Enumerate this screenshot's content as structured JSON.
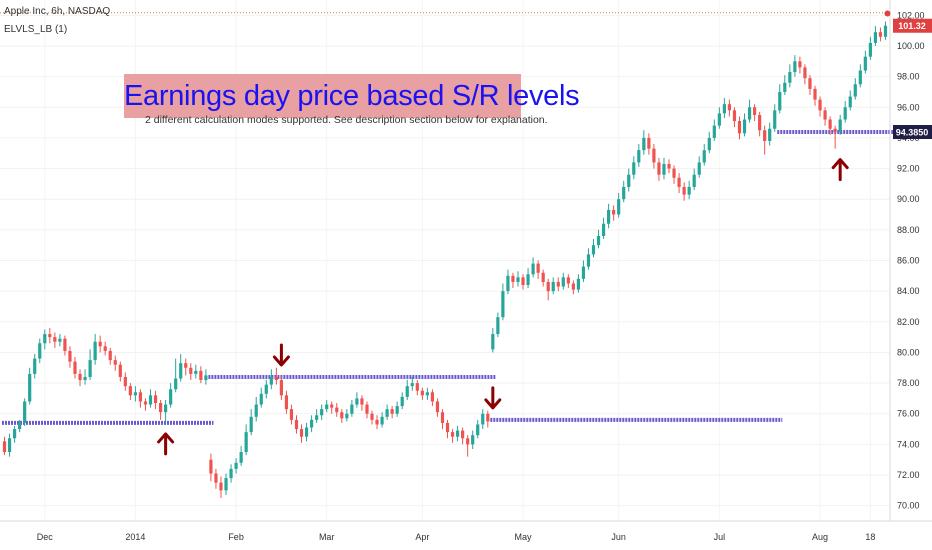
{
  "header": {
    "symbol_line": "Apple Inc, 6h, NASDAQ",
    "indicator_line": "ELVLS_LB (1)"
  },
  "banner": {
    "title": "Earnings day price based S/R levels",
    "subtitle": "2 different calculation modes supported. See description section below for explanation."
  },
  "colors": {
    "up": "#26a69a",
    "down": "#ef5350",
    "level": "#6a5acd",
    "arrow": "#8b0000",
    "current_price": "#e04040",
    "banner_bg": "#e8a0a3",
    "banner_text": "#1b12f0"
  },
  "chart_data": {
    "type": "candlestick",
    "y_axis": {
      "min": 69,
      "max": 103,
      "ticks": [
        "70.00",
        "72.00",
        "74.00",
        "76.00",
        "78.00",
        "80.00",
        "82.00",
        "84.00",
        "86.00",
        "88.00",
        "90.00",
        "92.00",
        "94.00",
        "96.00",
        "98.00",
        "100.00",
        "102.00"
      ]
    },
    "x_axis": {
      "labels": [
        "Dec",
        "2014",
        "Feb",
        "Mar",
        "Apr",
        "May",
        "Jun",
        "Jul",
        "Aug",
        "18"
      ],
      "label_positions": [
        8,
        26,
        46,
        64,
        83,
        103,
        122,
        142,
        162,
        172
      ]
    },
    "current_price": {
      "value": 101.32,
      "label": "101.32"
    },
    "level_price_label": {
      "value": 94.385,
      "label": "94.3850"
    },
    "sr_levels": [
      {
        "value": 75.4,
        "from": 0,
        "to": 41
      },
      {
        "value": 78.4,
        "from": 41,
        "to": 97
      },
      {
        "value": 75.6,
        "from": 97,
        "to": 154
      },
      {
        "value": 94.385,
        "from": 154,
        "to": 176
      }
    ],
    "earnings_arrows": [
      {
        "index": 32,
        "direction": "up",
        "value": 75.4
      },
      {
        "index": 55,
        "direction": "down",
        "value": 78.4
      },
      {
        "index": 97,
        "direction": "down",
        "value": 75.6
      },
      {
        "index": 166,
        "direction": "up",
        "value": 93.3
      }
    ],
    "candles": [
      [
        74.2,
        73.5,
        74.5,
        73.3
      ],
      [
        73.5,
        74.4,
        74.7,
        73.2
      ],
      [
        74.4,
        75.0,
        75.2,
        74.1
      ],
      [
        75.0,
        75.4,
        75.6,
        74.8
      ],
      [
        75.4,
        76.8,
        77.0,
        75.2
      ],
      [
        76.8,
        78.6,
        79.0,
        76.6
      ],
      [
        78.6,
        79.6,
        79.9,
        78.3
      ],
      [
        79.6,
        80.6,
        80.9,
        79.3
      ],
      [
        80.6,
        81.2,
        81.5,
        80.2
      ],
      [
        81.2,
        81.0,
        81.6,
        80.6
      ],
      [
        81.0,
        80.7,
        81.3,
        80.3
      ],
      [
        80.7,
        80.9,
        81.2,
        80.4
      ],
      [
        80.9,
        80.1,
        81.1,
        79.8
      ],
      [
        80.1,
        79.4,
        80.4,
        79.0
      ],
      [
        79.4,
        78.6,
        79.7,
        78.3
      ],
      [
        78.6,
        78.2,
        78.9,
        77.8
      ],
      [
        78.2,
        78.4,
        78.9,
        77.9
      ],
      [
        78.4,
        79.5,
        80.2,
        78.2
      ],
      [
        79.5,
        80.7,
        81.2,
        79.2
      ],
      [
        80.7,
        80.4,
        81.1,
        80.0
      ],
      [
        80.4,
        80.1,
        80.7,
        79.8
      ],
      [
        80.1,
        79.5,
        80.3,
        79.2
      ],
      [
        79.5,
        79.2,
        79.8,
        78.8
      ],
      [
        79.2,
        78.4,
        79.4,
        78.1
      ],
      [
        78.4,
        77.8,
        78.7,
        77.5
      ],
      [
        77.8,
        77.2,
        78.0,
        76.9
      ],
      [
        77.2,
        77.4,
        77.8,
        76.8
      ],
      [
        77.4,
        76.8,
        77.6,
        76.4
      ],
      [
        76.8,
        76.6,
        77.0,
        76.2
      ],
      [
        76.6,
        77.2,
        77.6,
        76.4
      ],
      [
        77.2,
        76.7,
        77.5,
        76.3
      ],
      [
        76.7,
        76.1,
        76.9,
        75.6
      ],
      [
        76.1,
        76.6,
        76.9,
        75.4
      ],
      [
        76.6,
        77.6,
        78.0,
        76.4
      ],
      [
        77.6,
        78.3,
        79.6,
        77.4
      ],
      [
        78.3,
        79.3,
        79.9,
        78.1
      ],
      [
        79.3,
        79.0,
        79.6,
        78.5
      ],
      [
        79.0,
        78.6,
        79.3,
        78.2
      ],
      [
        78.6,
        78.8,
        79.2,
        78.3
      ],
      [
        78.8,
        78.2,
        79.1,
        78.0
      ],
      [
        78.2,
        78.5,
        78.9,
        77.9
      ],
      [
        73.0,
        72.1,
        73.4,
        71.6
      ],
      [
        72.1,
        71.5,
        72.4,
        71.1
      ],
      [
        71.5,
        71.0,
        71.9,
        70.5
      ],
      [
        71.0,
        71.8,
        72.1,
        70.7
      ],
      [
        71.8,
        72.4,
        72.7,
        71.5
      ],
      [
        72.4,
        72.8,
        73.1,
        72.1
      ],
      [
        72.8,
        73.5,
        73.9,
        72.6
      ],
      [
        73.5,
        74.8,
        75.3,
        73.3
      ],
      [
        74.8,
        75.8,
        76.3,
        74.6
      ],
      [
        75.8,
        76.6,
        77.1,
        75.5
      ],
      [
        76.6,
        77.3,
        77.7,
        76.4
      ],
      [
        77.3,
        77.9,
        78.2,
        77.0
      ],
      [
        77.9,
        78.4,
        78.9,
        77.6
      ],
      [
        78.4,
        78.2,
        79.0,
        77.9
      ],
      [
        78.2,
        77.2,
        78.5,
        76.9
      ],
      [
        77.2,
        76.3,
        77.5,
        76.0
      ],
      [
        76.3,
        75.6,
        76.6,
        75.3
      ],
      [
        75.6,
        75.0,
        75.9,
        74.7
      ],
      [
        75.0,
        74.5,
        75.3,
        74.1
      ],
      [
        74.5,
        75.1,
        75.4,
        74.2
      ],
      [
        75.1,
        75.6,
        75.9,
        74.8
      ],
      [
        75.6,
        75.9,
        76.3,
        75.4
      ],
      [
        75.9,
        76.3,
        76.6,
        75.6
      ],
      [
        76.3,
        76.6,
        76.9,
        76.1
      ],
      [
        76.6,
        76.4,
        76.8,
        76.0
      ],
      [
        76.4,
        76.1,
        76.7,
        75.8
      ],
      [
        76.1,
        75.7,
        76.3,
        75.4
      ],
      [
        75.7,
        76.0,
        76.3,
        75.5
      ],
      [
        76.0,
        76.6,
        76.9,
        75.8
      ],
      [
        76.6,
        77.0,
        77.4,
        76.4
      ],
      [
        77.0,
        76.6,
        77.2,
        76.2
      ],
      [
        76.6,
        76.0,
        76.8,
        75.7
      ],
      [
        76.0,
        75.6,
        76.2,
        75.3
      ],
      [
        75.6,
        75.3,
        75.9,
        75.0
      ],
      [
        75.3,
        75.8,
        76.1,
        75.1
      ],
      [
        75.8,
        76.3,
        76.6,
        75.6
      ],
      [
        76.3,
        76.0,
        76.5,
        75.7
      ],
      [
        76.0,
        76.5,
        76.8,
        75.8
      ],
      [
        76.5,
        77.1,
        77.4,
        76.3
      ],
      [
        77.1,
        77.8,
        78.2,
        76.9
      ],
      [
        77.8,
        78.0,
        78.4,
        77.5
      ],
      [
        78.0,
        77.5,
        78.2,
        77.2
      ],
      [
        77.5,
        77.2,
        77.7,
        76.9
      ],
      [
        77.2,
        77.4,
        77.7,
        76.9
      ],
      [
        77.4,
        76.8,
        77.6,
        76.5
      ],
      [
        76.8,
        76.1,
        77.0,
        75.8
      ],
      [
        76.1,
        75.4,
        76.3,
        75.0
      ],
      [
        75.4,
        74.8,
        75.6,
        74.4
      ],
      [
        74.8,
        74.5,
        75.0,
        74.1
      ],
      [
        74.5,
        74.9,
        75.2,
        74.2
      ],
      [
        74.9,
        74.4,
        75.1,
        74.0
      ],
      [
        74.4,
        74.0,
        74.6,
        73.2
      ],
      [
        74.0,
        74.6,
        74.9,
        73.7
      ],
      [
        74.6,
        75.3,
        75.6,
        74.4
      ],
      [
        75.3,
        76.0,
        76.3,
        75.0
      ],
      [
        76.0,
        75.5,
        76.2,
        75.1
      ],
      [
        80.2,
        81.2,
        81.6,
        80.0
      ],
      [
        81.2,
        82.3,
        82.6,
        81.0
      ],
      [
        82.3,
        84.0,
        84.5,
        82.1
      ],
      [
        84.0,
        85.0,
        85.4,
        83.8
      ],
      [
        85.0,
        84.6,
        85.2,
        84.2
      ],
      [
        84.6,
        84.9,
        85.3,
        84.3
      ],
      [
        84.9,
        84.4,
        85.1,
        84.1
      ],
      [
        84.4,
        85.1,
        85.5,
        84.2
      ],
      [
        85.1,
        85.8,
        86.2,
        84.9
      ],
      [
        85.8,
        85.2,
        86.0,
        84.8
      ],
      [
        85.2,
        84.6,
        85.4,
        84.3
      ],
      [
        84.6,
        84.0,
        84.8,
        83.4
      ],
      [
        84.0,
        84.6,
        84.9,
        83.8
      ],
      [
        84.6,
        84.3,
        84.9,
        84.0
      ],
      [
        84.3,
        84.9,
        85.2,
        84.1
      ],
      [
        84.9,
        84.5,
        85.1,
        84.2
      ],
      [
        84.5,
        84.1,
        84.7,
        83.8
      ],
      [
        84.1,
        84.8,
        85.1,
        83.9
      ],
      [
        84.8,
        85.6,
        86.0,
        84.6
      ],
      [
        85.6,
        86.4,
        86.8,
        85.4
      ],
      [
        86.4,
        87.0,
        87.4,
        86.2
      ],
      [
        87.0,
        87.6,
        88.0,
        86.8
      ],
      [
        87.6,
        88.4,
        88.8,
        87.4
      ],
      [
        88.4,
        89.3,
        89.7,
        88.1
      ],
      [
        89.3,
        89.0,
        89.6,
        88.6
      ],
      [
        89.0,
        90.0,
        90.4,
        88.8
      ],
      [
        90.0,
        90.8,
        91.2,
        89.8
      ],
      [
        90.8,
        91.6,
        92.0,
        90.5
      ],
      [
        91.6,
        92.4,
        92.8,
        91.3
      ],
      [
        92.4,
        93.2,
        93.6,
        92.1
      ],
      [
        93.2,
        94.0,
        94.5,
        92.9
      ],
      [
        94.0,
        93.3,
        94.3,
        92.9
      ],
      [
        93.3,
        92.4,
        93.6,
        92.0
      ],
      [
        92.4,
        91.6,
        92.7,
        91.2
      ],
      [
        91.6,
        92.3,
        92.7,
        91.3
      ],
      [
        92.3,
        92.0,
        92.6,
        91.7
      ],
      [
        92.0,
        91.4,
        92.2,
        91.0
      ],
      [
        91.4,
        90.8,
        91.7,
        90.4
      ],
      [
        90.8,
        90.3,
        91.1,
        89.9
      ],
      [
        90.3,
        90.8,
        91.2,
        90.0
      ],
      [
        90.8,
        91.6,
        92.0,
        90.6
      ],
      [
        91.6,
        92.4,
        92.8,
        91.4
      ],
      [
        92.4,
        93.2,
        93.6,
        92.2
      ],
      [
        93.2,
        94.0,
        94.4,
        93.0
      ],
      [
        94.0,
        94.8,
        95.2,
        93.8
      ],
      [
        94.8,
        95.6,
        96.0,
        94.6
      ],
      [
        95.6,
        96.2,
        96.6,
        95.3
      ],
      [
        96.2,
        95.8,
        96.5,
        95.4
      ],
      [
        95.8,
        95.1,
        96.0,
        94.7
      ],
      [
        95.1,
        94.3,
        95.4,
        93.9
      ],
      [
        94.3,
        95.2,
        95.6,
        94.1
      ],
      [
        95.2,
        96.0,
        96.5,
        95.0
      ],
      [
        96.0,
        95.5,
        96.2,
        95.1
      ],
      [
        95.5,
        94.5,
        95.7,
        94.1
      ],
      [
        94.5,
        93.8,
        94.8,
        92.9
      ],
      [
        93.8,
        94.6,
        95.0,
        93.5
      ],
      [
        94.6,
        95.8,
        96.2,
        94.4
      ],
      [
        95.8,
        97.0,
        97.5,
        95.6
      ],
      [
        97.0,
        97.6,
        98.1,
        96.8
      ],
      [
        97.6,
        98.3,
        98.8,
        97.3
      ],
      [
        98.3,
        99.0,
        99.4,
        98.0
      ],
      [
        99.0,
        98.6,
        99.3,
        98.2
      ],
      [
        98.6,
        97.9,
        98.8,
        97.5
      ],
      [
        97.9,
        97.2,
        98.1,
        96.8
      ],
      [
        97.2,
        96.5,
        97.4,
        96.1
      ],
      [
        96.5,
        95.8,
        96.7,
        95.4
      ],
      [
        95.8,
        95.2,
        96.0,
        94.8
      ],
      [
        95.2,
        94.6,
        95.4,
        94.2
      ],
      [
        94.6,
        94.4,
        94.8,
        93.3
      ],
      [
        94.4,
        95.2,
        95.5,
        94.2
      ],
      [
        95.2,
        96.0,
        96.4,
        95.0
      ],
      [
        96.0,
        96.7,
        97.1,
        95.8
      ],
      [
        96.7,
        97.5,
        97.9,
        96.5
      ],
      [
        97.5,
        98.4,
        98.8,
        97.3
      ],
      [
        98.4,
        99.3,
        99.7,
        98.2
      ],
      [
        99.3,
        100.2,
        100.6,
        99.1
      ],
      [
        100.2,
        100.9,
        101.3,
        100.0
      ],
      [
        100.9,
        100.6,
        101.2,
        100.3
      ],
      [
        100.6,
        101.32,
        101.6,
        100.4
      ]
    ]
  }
}
